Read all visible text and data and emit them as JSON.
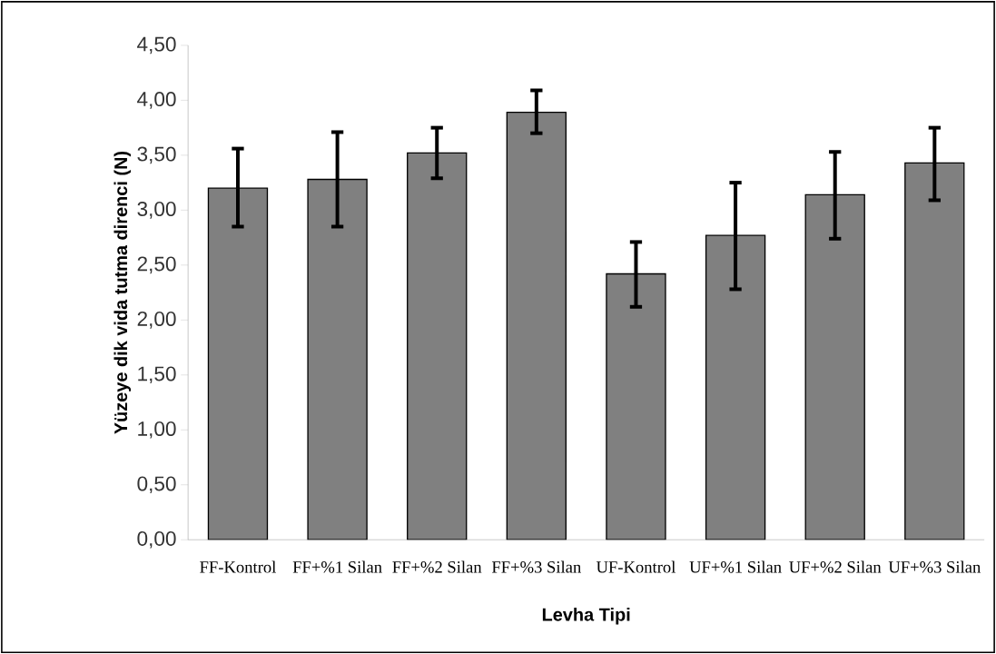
{
  "chart_data": {
    "type": "bar",
    "xlabel": "Levha Tipi",
    "ylabel": "Yüzeye dik vida tutma direnci (N)",
    "categories": [
      "FF-Kontrol",
      "FF+%1 Silan",
      "FF+%2 Silan",
      "FF+%3 Silan",
      "UF-Kontrol",
      "UF+%1 Silan",
      "UF+%2 Silan",
      "UF+%3 Silan"
    ],
    "values": [
      3.2,
      3.28,
      3.52,
      3.89,
      2.42,
      2.77,
      3.14,
      3.43
    ],
    "errors": [
      [
        2.85,
        3.56
      ],
      [
        2.85,
        3.71
      ],
      [
        3.29,
        3.75
      ],
      [
        3.7,
        4.09
      ],
      [
        2.12,
        2.71
      ],
      [
        2.28,
        3.25
      ],
      [
        2.74,
        3.53
      ],
      [
        3.09,
        3.75
      ]
    ],
    "color": "#808080",
    "ylim": [
      0,
      4.5
    ],
    "yticks": [
      {
        "value": 0,
        "label": "0,00"
      },
      {
        "value": 0.5,
        "label": "0,50"
      },
      {
        "value": 1,
        "label": "1,00"
      },
      {
        "value": 1.5,
        "label": "1,50"
      },
      {
        "value": 2,
        "label": "2,00"
      },
      {
        "value": 2.5,
        "label": "2,50"
      },
      {
        "value": 3,
        "label": "3,00"
      },
      {
        "value": 3.5,
        "label": "3,50"
      },
      {
        "value": 4,
        "label": "4,00"
      },
      {
        "value": 4.5,
        "label": "4,50"
      }
    ],
    "grid": false
  }
}
